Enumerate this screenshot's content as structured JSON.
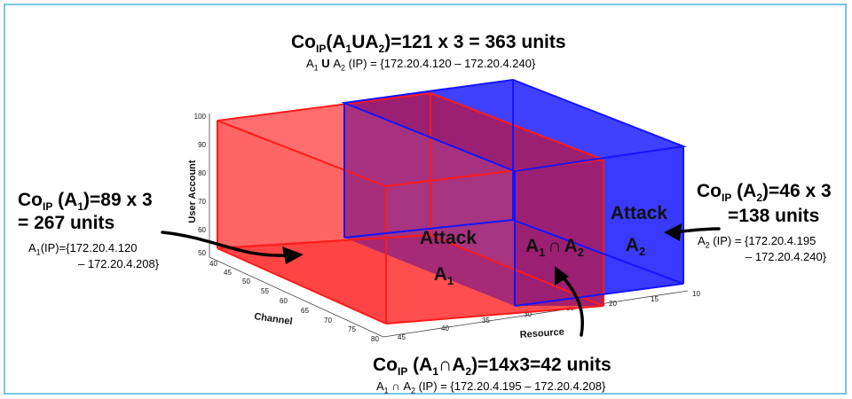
{
  "top": {
    "line1": {
      "co": "Co",
      "sub": "IP",
      "formula": "(A",
      "s1": "1",
      "op": "U",
      "a2": "A",
      "s2": "2",
      "rest": ")=121 x 3 = 363 units"
    },
    "line2": {
      "a1": "A",
      "s1": "1",
      "op": " U ",
      "a2": "A",
      "s2": "2",
      "rest": " (IP) = {172.20.4.120 – 172.20.4.240}"
    }
  },
  "left": {
    "line1": {
      "co": "Co",
      "sub": "IP",
      "rest1": " (A",
      "s1": "1",
      "rest2": ")=89 x 3"
    },
    "line2": "= 267 units",
    "line3": {
      "a": "A",
      "s": "1",
      "rest": "(IP)={172.20.4.120"
    },
    "line4": "– 172.20.4.208}"
  },
  "right": {
    "line1": {
      "co": "Co",
      "sub": "IP",
      "rest1": " (A",
      "s1": "2",
      "rest2": ")=46 x 3"
    },
    "line2": "=138 units",
    "line3": {
      "a": "A",
      "s": "2",
      "rest": " (IP) = {172.20.4.195"
    },
    "line4": "– 172.20.4.240}"
  },
  "bottom": {
    "line1": {
      "co": "Co",
      "sub": "IP",
      "rest1": " (A",
      "s1": "1",
      "op": "∩",
      "a2": "A",
      "s2": "2",
      "rest2": ")=14x3=42 units"
    },
    "line2": {
      "a": "A",
      "s1": "1",
      "op": " ∩ ",
      "a2": "A",
      "s2": "2",
      "rest": "  (IP) = {172.20.4.195 – 172.20.4.208}"
    }
  },
  "plot": {
    "z_label": "User Account",
    "x_label": "Channel",
    "y_label": "Resource",
    "z_ticks": [
      "100",
      "90",
      "80",
      "70",
      "60",
      "50"
    ],
    "x_ticks": [
      "40",
      "45",
      "50",
      "55",
      "60",
      "65",
      "70",
      "75",
      "80"
    ],
    "y_ticks": [
      "45",
      "40",
      "35",
      "30",
      "25",
      "20",
      "15",
      "10"
    ],
    "attack1": {
      "word": "Attack",
      "a": "A",
      "s": "1"
    },
    "attack2": {
      "word": "Attack",
      "a": "A",
      "s": "2"
    },
    "intersection": {
      "a1": "A",
      "s1": "1",
      "op": "∩",
      "a2": "A",
      "s2": "2"
    },
    "colors": {
      "attack1": "#ff2a2a",
      "attack2": "#1f1fff",
      "overlap": "#a0206c"
    }
  }
}
